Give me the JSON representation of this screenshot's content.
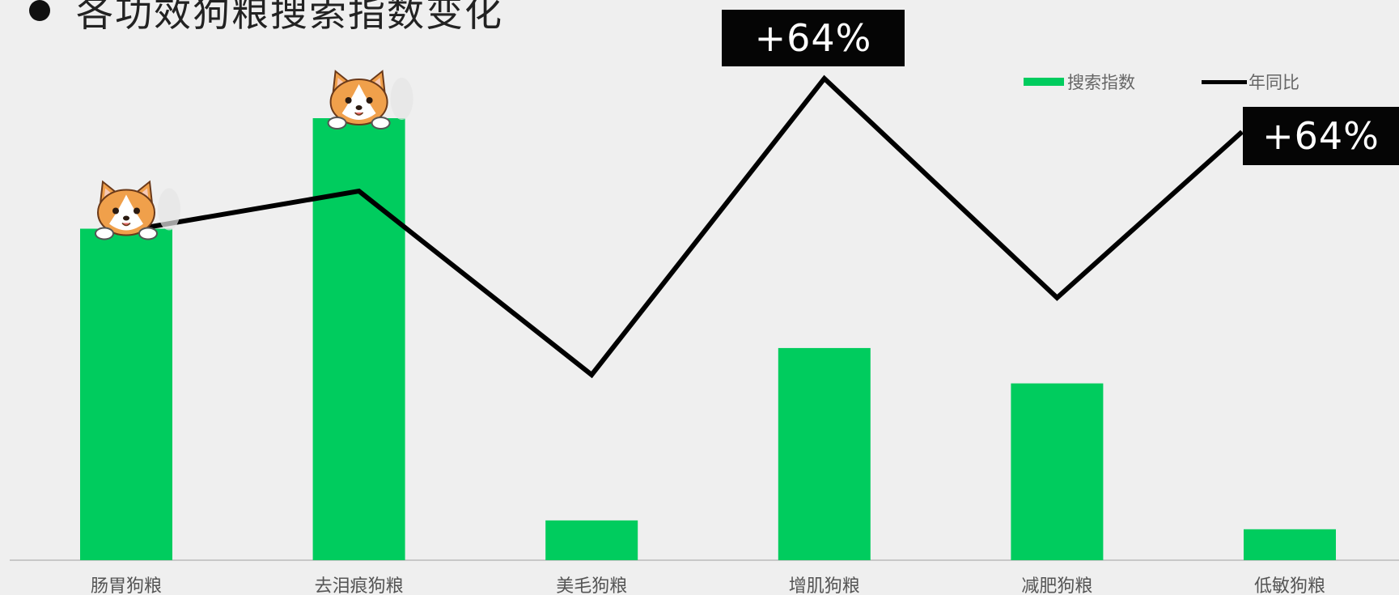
{
  "title": "各功效狗粮搜索指数变化",
  "legend": {
    "bar_label": "搜索指数",
    "line_label": "年同比"
  },
  "callouts": [
    "+64%",
    "+64%"
  ],
  "colors": {
    "bar": "#00cc5e",
    "line": "#000000",
    "background": "#efefef",
    "callout_bg": "#050505",
    "corgi_orange": "#f0a04b"
  },
  "icons": [
    "corgi-icon",
    "corgi-icon"
  ],
  "chart_data": {
    "type": "bar",
    "categories": [
      "肠胃狗粮",
      "去泪痕狗粮",
      "美毛狗粮",
      "增肌狗粮",
      "减肥狗粮",
      "低敏狗粮"
    ],
    "series": [
      {
        "name": "搜索指数",
        "type": "bar",
        "values": [
          75,
          100,
          9,
          48,
          40,
          7
        ]
      },
      {
        "name": "年同比",
        "type": "line",
        "values": [
          38,
          45,
          14,
          64,
          27,
          55
        ]
      }
    ],
    "grid": false,
    "legend_position": "top-right"
  }
}
